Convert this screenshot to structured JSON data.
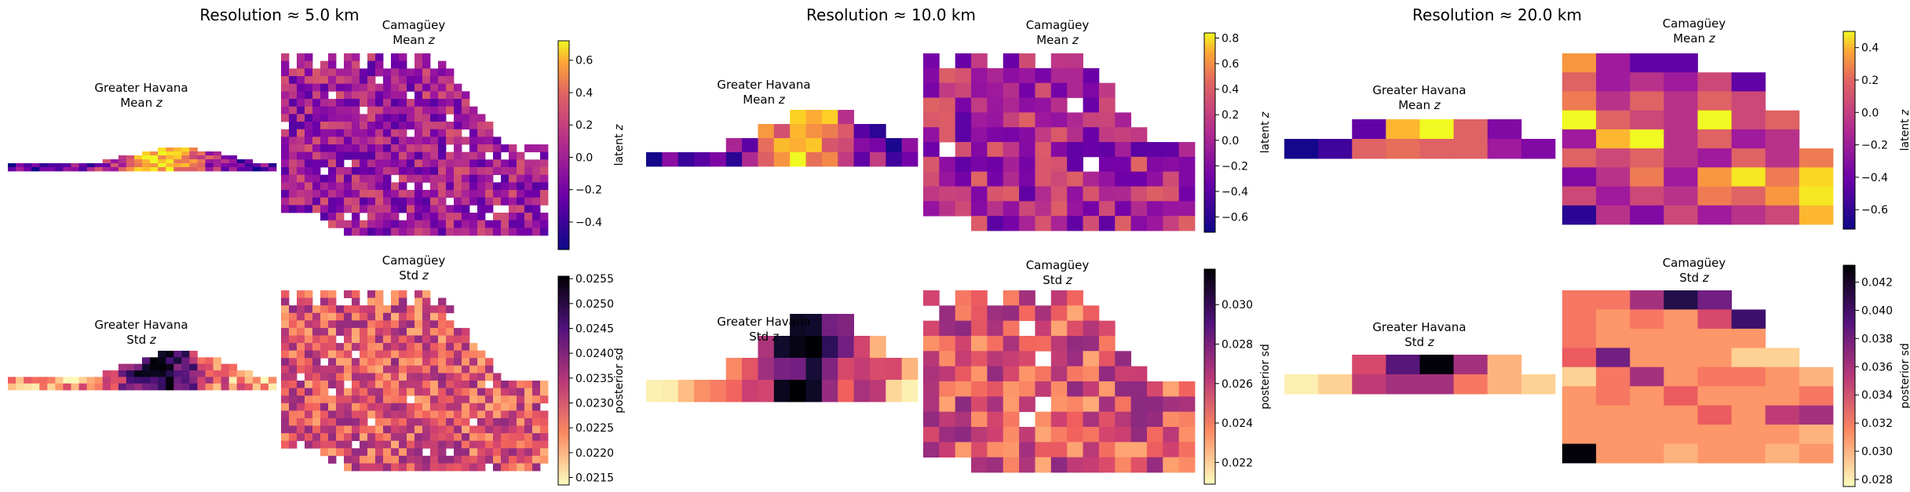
{
  "chart_data": [
    {
      "type": "heatmap",
      "title": "Resolution ≈ 5.0 km",
      "panels": [
        {
          "statistic": "mean",
          "colormap": "plasma",
          "colorbar": {
            "label": "latent z",
            "range": [
              -0.57,
              0.72
            ],
            "ticks": [
              -0.4,
              -0.2,
              0.0,
              0.2,
              0.4,
              0.6
            ],
            "tick_labels": [
              "−0.4",
              "−0.2",
              "0.0",
              "0.2",
              "0.4",
              "0.6"
            ]
          },
          "regions": [
            {
              "title": "Greater Havana",
              "subtitle": "Mean",
              "cols": 34,
              "rows": 6,
              "min_value": -0.57,
              "max_value": 0.72,
              "note": "approx. grid; east-central cells highest (~0.7), western cells lowest"
            },
            {
              "title": "Camagüey",
              "subtitle": "Mean",
              "cols": 34,
              "rows": 24,
              "min_value": -0.57,
              "max_value": 0.6,
              "note": "approx. grid; mostly between -0.4 and 0.3"
            }
          ]
        },
        {
          "statistic": "std",
          "colormap": "magma_r",
          "colorbar": {
            "label": "posterior sd",
            "range": [
              0.02135,
              0.02555
            ],
            "ticks": [
              0.0215,
              0.022,
              0.0225,
              0.023,
              0.0235,
              0.024,
              0.0245,
              0.025,
              0.0255
            ],
            "tick_labels": [
              "0.0215",
              "0.0220",
              "0.0225",
              "0.0230",
              "0.0235",
              "0.0240",
              "0.0245",
              "0.0250",
              "0.0255"
            ]
          },
          "regions": [
            {
              "title": "Greater Havana",
              "subtitle": "Std",
              "cols": 34,
              "rows": 6,
              "min_value": 0.0214,
              "max_value": 0.0255,
              "note": "highest sd in central cells (~0.0255)"
            },
            {
              "title": "Camagüey",
              "subtitle": "Std",
              "cols": 34,
              "rows": 24,
              "min_value": 0.0214,
              "max_value": 0.0254,
              "note": "mostly 0.0225-0.024"
            }
          ]
        }
      ]
    },
    {
      "type": "heatmap",
      "title": "Resolution ≈ 10.0 km",
      "panels": [
        {
          "statistic": "mean",
          "colormap": "plasma",
          "colorbar": {
            "label": "latent z",
            "range": [
              -0.72,
              0.84
            ],
            "ticks": [
              -0.6,
              -0.4,
              -0.2,
              0.0,
              0.2,
              0.4,
              0.6,
              0.8
            ],
            "tick_labels": [
              "−0.6",
              "−0.4",
              "−0.2",
              "0.0",
              "0.2",
              "0.4",
              "0.6",
              "0.8"
            ]
          },
          "regions": [
            {
              "title": "Greater Havana",
              "subtitle": "Mean",
              "cols": 17,
              "rows": 4,
              "min_value": -0.7,
              "max_value": 0.84,
              "note": "highest near cols 8-9"
            },
            {
              "title": "Camagüey",
              "subtitle": "Mean",
              "cols": 17,
              "rows": 12,
              "min_value": -0.72,
              "max_value": 0.8,
              "note": "mostly -0.4 to 0.2"
            }
          ]
        },
        {
          "statistic": "std",
          "colormap": "magma_r",
          "colorbar": {
            "label": "posterior sd",
            "range": [
              0.0209,
              0.0318
            ],
            "ticks": [
              0.022,
              0.024,
              0.026,
              0.028,
              0.03
            ],
            "tick_labels": [
              "0.022",
              "0.024",
              "0.026",
              "0.028",
              "0.030"
            ]
          },
          "regions": [
            {
              "title": "Greater Havana",
              "subtitle": "Std",
              "cols": 17,
              "rows": 4,
              "min_value": 0.0212,
              "max_value": 0.0318,
              "note": "peak sd at cols 8-9"
            },
            {
              "title": "Camagüey",
              "subtitle": "Std",
              "cols": 17,
              "rows": 12,
              "min_value": 0.021,
              "max_value": 0.0315,
              "note": "mostly 0.021-0.024"
            }
          ]
        }
      ]
    },
    {
      "type": "heatmap",
      "title": "Resolution ≈ 20.0 km",
      "panels": [
        {
          "statistic": "mean",
          "colormap": "plasma",
          "colorbar": {
            "label": "latent z",
            "range": [
              -0.72,
              0.5
            ],
            "ticks": [
              -0.6,
              -0.4,
              -0.2,
              0.0,
              0.2,
              0.4
            ],
            "tick_labels": [
              "−0.6",
              "−0.4",
              "−0.2",
              "0.0",
              "0.2",
              "0.4"
            ]
          },
          "regions": [
            {
              "title": "Greater Havana",
              "subtitle": "Mean",
              "cols": 8,
              "rows": 2,
              "grid": [
                [
                  null,
                  null,
                  -0.5,
                  0.3,
                  0.5,
                  0.0,
                  -0.4,
                  null
                ],
                [
                  -0.7,
                  -0.6,
                  0.0,
                  0.05,
                  0.0,
                  0.0,
                  -0.3,
                  -0.4
                ]
              ]
            },
            {
              "title": "Camagüey",
              "subtitle": "Mean",
              "cols": 8,
              "rows": 9,
              "grid": [
                [
                  0.2,
                  -0.3,
                  -0.5,
                  -0.5,
                  null,
                  null,
                  null,
                  null
                ],
                [
                  0.0,
                  -0.3,
                  -0.2,
                  -0.3,
                  -0.1,
                  -0.5,
                  null,
                  null
                ],
                [
                  0.1,
                  -0.2,
                  0.0,
                  -0.2,
                  0.0,
                  -0.1,
                  null,
                  null
                ],
                [
                  0.5,
                  0.0,
                  -0.1,
                  -0.2,
                  0.5,
                  -0.1,
                  0.0,
                  null
                ],
                [
                  -0.3,
                  0.3,
                  0.5,
                  -0.2,
                  0.0,
                  -0.3,
                  -0.2,
                  null
                ],
                [
                  0.0,
                  -0.1,
                  0.0,
                  -0.2,
                  -0.3,
                  0.0,
                  -0.2,
                  0.1
                ],
                [
                  -0.4,
                  -0.2,
                  0.1,
                  -0.3,
                  0.2,
                  0.45,
                  0.1,
                  0.4
                ],
                [
                  -0.1,
                  -0.3,
                  -0.1,
                  -0.2,
                  0.1,
                  0.0,
                  0.2,
                  0.45
                ],
                [
                  -0.65,
                  -0.2,
                  -0.4,
                  -0.1,
                  -0.3,
                  -0.2,
                  -0.1,
                  0.3
                ]
              ]
            }
          ]
        },
        {
          "statistic": "std",
          "colormap": "magma_r",
          "colorbar": {
            "label": "posterior sd",
            "range": [
              0.0275,
              0.0432
            ],
            "ticks": [
              0.028,
              0.03,
              0.032,
              0.034,
              0.036,
              0.038,
              0.04,
              0.042
            ],
            "tick_labels": [
              "0.028",
              "0.030",
              "0.032",
              "0.034",
              "0.036",
              "0.038",
              "0.040",
              "0.042"
            ]
          },
          "regions": [
            {
              "title": "Greater Havana",
              "subtitle": "Std",
              "cols": 8,
              "rows": 2,
              "grid": [
                [
                  null,
                  null,
                  0.034,
                  0.039,
                  0.043,
                  0.036,
                  0.03,
                  null
                ],
                [
                  0.028,
                  0.029,
                  0.035,
                  0.036,
                  0.036,
                  0.032,
                  0.03,
                  0.029
                ]
              ]
            },
            {
              "title": "Camagüey",
              "subtitle": "Std",
              "cols": 8,
              "rows": 9,
              "grid": [
                [
                  0.032,
                  0.032,
                  0.036,
                  0.041,
                  0.038,
                  null,
                  null,
                  null
                ],
                [
                  0.032,
                  0.031,
                  0.032,
                  0.031,
                  0.034,
                  0.04,
                  null,
                  null
                ],
                [
                  0.032,
                  0.031,
                  0.031,
                  0.031,
                  0.031,
                  0.031,
                  null,
                  null
                ],
                [
                  0.033,
                  0.038,
                  0.031,
                  0.031,
                  0.031,
                  0.029,
                  0.029,
                  null
                ],
                [
                  0.029,
                  0.032,
                  0.036,
                  0.031,
                  0.032,
                  0.032,
                  0.031,
                  0.03
                ],
                [
                  0.031,
                  0.032,
                  0.031,
                  0.033,
                  0.031,
                  0.031,
                  0.031,
                  0.032
                ],
                [
                  0.031,
                  0.031,
                  0.031,
                  0.031,
                  0.033,
                  0.031,
                  0.035,
                  0.036
                ],
                [
                  0.031,
                  0.031,
                  0.031,
                  0.031,
                  0.031,
                  0.031,
                  0.031,
                  0.03
                ],
                [
                  0.043,
                  0.031,
                  0.031,
                  0.03,
                  0.031,
                  0.031,
                  0.03,
                  0.031
                ]
              ]
            }
          ]
        }
      ]
    }
  ]
}
